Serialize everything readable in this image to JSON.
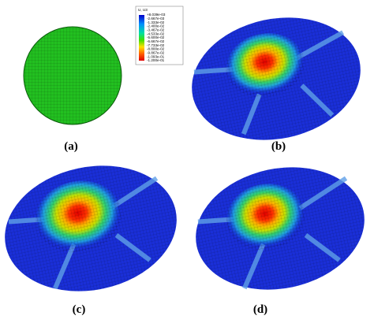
{
  "panels": [
    {
      "label": "(a)"
    },
    {
      "label": "(b)"
    },
    {
      "label": "(c)"
    },
    {
      "label": "(d)"
    }
  ],
  "legend": {
    "title": "U, U3",
    "labels": [
      "+8.039e-03",
      "-2.667e-03",
      "-1.333e-02",
      "-2.400e-02",
      "-3.467e-02",
      "-4.533e-02",
      "-5.600e-02",
      "-6.667e-02",
      "-7.733e-02",
      "-8.800e-02",
      "-9.867e-02",
      "-1.093e-01",
      "-1.200e-01"
    ]
  }
}
